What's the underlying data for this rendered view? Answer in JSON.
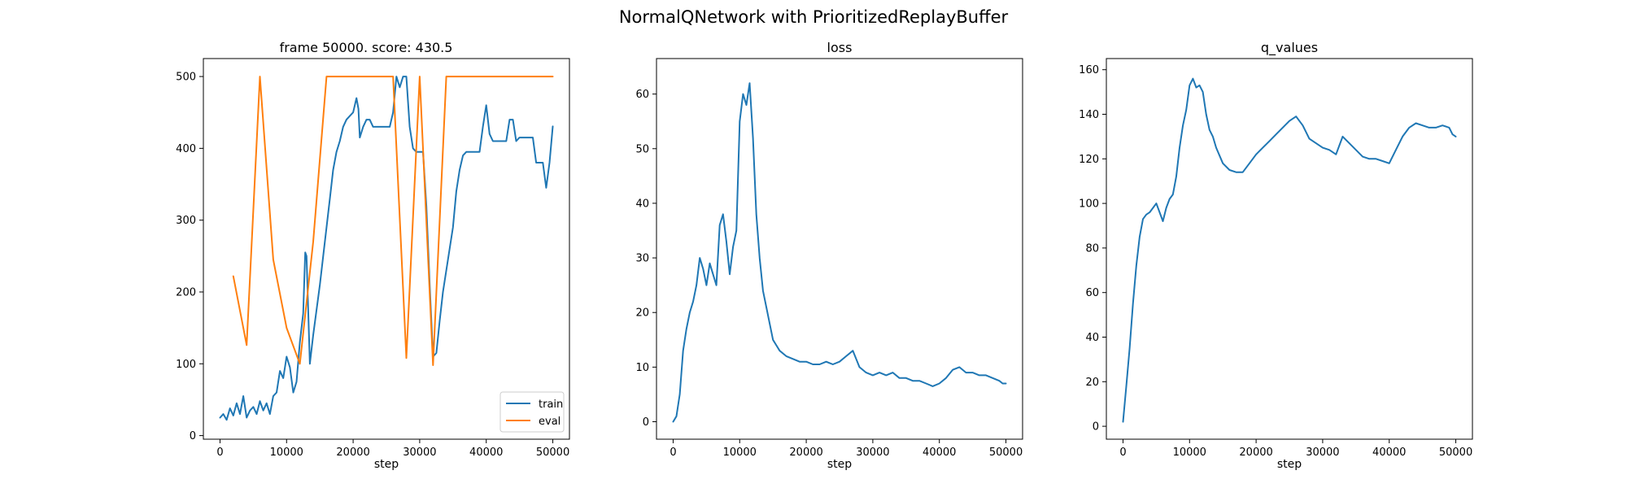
{
  "figure": {
    "suptitle": "NormalQNetwork with PrioritizedReplayBuffer"
  },
  "colors": {
    "train": "#1f77b4",
    "eval": "#ff7f0e",
    "axes": "#000000",
    "legend_border": "#cccccc"
  },
  "chart_data": [
    {
      "type": "line",
      "title": "frame 50000. score: 430.5",
      "xlabel": "step",
      "ylabel": "",
      "xlim": [
        -2500,
        52500
      ],
      "ylim": [
        -5,
        525
      ],
      "xticks": [
        0,
        10000,
        20000,
        30000,
        40000,
        50000
      ],
      "yticks": [
        0,
        100,
        200,
        300,
        400,
        500
      ],
      "legend": {
        "position": "lower right",
        "entries": [
          "train",
          "eval"
        ]
      },
      "series": [
        {
          "name": "train",
          "color": "#1f77b4",
          "x": [
            0,
            500,
            1000,
            1500,
            2000,
            2500,
            3000,
            3500,
            4000,
            4500,
            5000,
            5500,
            6000,
            6500,
            7000,
            7500,
            8000,
            8500,
            9000,
            9500,
            10000,
            10500,
            11000,
            11500,
            12000,
            12500,
            12800,
            13000,
            13500,
            14000,
            14500,
            15000,
            15500,
            16000,
            16500,
            17000,
            17500,
            18000,
            18500,
            19000,
            19500,
            20000,
            20500,
            20800,
            21000,
            21500,
            22000,
            22500,
            23000,
            23500,
            24000,
            24500,
            25000,
            25500,
            26000,
            26500,
            27000,
            27500,
            28000,
            28500,
            29000,
            29500,
            30000,
            30500,
            31000,
            31500,
            32000,
            32500,
            33000,
            33500,
            34000,
            34500,
            35000,
            35500,
            36000,
            36500,
            37000,
            37500,
            38000,
            38500,
            39000,
            39500,
            40000,
            40500,
            41000,
            41500,
            42000,
            42500,
            43000,
            43500,
            44000,
            44500,
            45000,
            45500,
            46000,
            46500,
            47000,
            47500,
            48000,
            48500,
            49000,
            49500,
            50000
          ],
          "values": [
            25,
            30,
            22,
            38,
            28,
            45,
            30,
            55,
            25,
            35,
            40,
            30,
            48,
            35,
            45,
            30,
            55,
            60,
            90,
            80,
            110,
            95,
            60,
            75,
            130,
            170,
            255,
            250,
            100,
            140,
            175,
            210,
            250,
            290,
            330,
            370,
            395,
            410,
            430,
            440,
            445,
            450,
            470,
            455,
            415,
            430,
            440,
            440,
            430,
            430,
            430,
            430,
            430,
            430,
            450,
            500,
            485,
            500,
            500,
            430,
            400,
            395,
            395,
            395,
            320,
            210,
            110,
            115,
            160,
            200,
            230,
            260,
            290,
            340,
            370,
            390,
            395,
            395,
            395,
            395,
            395,
            430,
            460,
            420,
            410,
            410,
            410,
            410,
            410,
            440,
            440,
            410,
            415,
            415,
            415,
            415,
            415,
            380,
            380,
            380,
            345,
            380,
            430.5
          ]
        },
        {
          "name": "eval",
          "color": "#ff7f0e",
          "x": [
            2000,
            4000,
            6000,
            8000,
            10000,
            12000,
            14000,
            16000,
            18000,
            20000,
            22000,
            24000,
            26000,
            28000,
            30000,
            32000,
            34000,
            36000,
            38000,
            40000,
            42000,
            44000,
            46000,
            48000,
            50000
          ],
          "values": [
            222,
            126,
            500,
            245,
            150,
            100,
            270,
            500,
            500,
            500,
            500,
            500,
            500,
            108,
            500,
            98,
            500,
            500,
            500,
            500,
            500,
            500,
            500,
            500,
            500
          ]
        }
      ]
    },
    {
      "type": "line",
      "title": "loss",
      "xlabel": "step",
      "ylabel": "",
      "xlim": [
        -2500,
        52500
      ],
      "ylim": [
        -3.2,
        66.5
      ],
      "xticks": [
        0,
        10000,
        20000,
        30000,
        40000,
        50000
      ],
      "yticks": [
        0,
        10,
        20,
        30,
        40,
        50,
        60
      ],
      "series": [
        {
          "name": "",
          "color": "#1f77b4",
          "x": [
            0,
            500,
            1000,
            1500,
            2000,
            2500,
            3000,
            3500,
            4000,
            4500,
            5000,
            5500,
            6000,
            6500,
            7000,
            7500,
            8000,
            8500,
            9000,
            9500,
            10000,
            10500,
            11000,
            11500,
            12000,
            12500,
            13000,
            13500,
            14000,
            14500,
            15000,
            15500,
            16000,
            17000,
            18000,
            19000,
            20000,
            21000,
            22000,
            23000,
            24000,
            25000,
            26000,
            27000,
            28000,
            29000,
            30000,
            31000,
            32000,
            33000,
            34000,
            35000,
            36000,
            37000,
            38000,
            39000,
            40000,
            41000,
            42000,
            43000,
            44000,
            45000,
            46000,
            47000,
            48000,
            49000,
            49500,
            50000
          ],
          "values": [
            0,
            1,
            5,
            13,
            17,
            20,
            22,
            25,
            30,
            28,
            25,
            29,
            27,
            25,
            36,
            38,
            33,
            27,
            32,
            35,
            55,
            60,
            58,
            62,
            52,
            38,
            30,
            24,
            21,
            18,
            15,
            14,
            13,
            12,
            11.5,
            11,
            11,
            10.5,
            10.5,
            11,
            10.5,
            11,
            12,
            13,
            10,
            9,
            8.5,
            9,
            8.5,
            9,
            8,
            8,
            7.5,
            7.5,
            7,
            6.5,
            7,
            8,
            9.5,
            10,
            9,
            9,
            8.5,
            8.5,
            8,
            7.5,
            7,
            7
          ]
        }
      ]
    },
    {
      "type": "line",
      "title": "q_values",
      "xlabel": "step",
      "ylabel": "",
      "xlim": [
        -2500,
        52500
      ],
      "ylim": [
        -5.8,
        165
      ],
      "xticks": [
        0,
        10000,
        20000,
        30000,
        40000,
        50000
      ],
      "yticks": [
        0,
        20,
        40,
        60,
        80,
        100,
        120,
        140,
        160
      ],
      "series": [
        {
          "name": "",
          "color": "#1f77b4",
          "x": [
            0,
            500,
            1000,
            1500,
            2000,
            2500,
            3000,
            3500,
            4000,
            4500,
            5000,
            5500,
            6000,
            6500,
            7000,
            7500,
            8000,
            8500,
            9000,
            9500,
            10000,
            10500,
            11000,
            11500,
            12000,
            12500,
            13000,
            13500,
            14000,
            15000,
            16000,
            17000,
            18000,
            19000,
            20000,
            21000,
            22000,
            23000,
            24000,
            25000,
            26000,
            27000,
            28000,
            29000,
            30000,
            31000,
            32000,
            33000,
            34000,
            35000,
            36000,
            37000,
            38000,
            39000,
            40000,
            41000,
            42000,
            43000,
            44000,
            45000,
            46000,
            47000,
            48000,
            49000,
            49500,
            50000
          ],
          "values": [
            2,
            18,
            35,
            55,
            72,
            85,
            93,
            95,
            96,
            98,
            100,
            96,
            92,
            98,
            102,
            104,
            112,
            125,
            135,
            142,
            153,
            156,
            152,
            153,
            150,
            140,
            133,
            130,
            125,
            118,
            115,
            114,
            114,
            118,
            122,
            125,
            128,
            131,
            134,
            137,
            139,
            135,
            129,
            127,
            125,
            124,
            122,
            130,
            127,
            124,
            121,
            120,
            120,
            119,
            118,
            124,
            130,
            134,
            136,
            135,
            134,
            134,
            135,
            134,
            131,
            130
          ]
        }
      ]
    }
  ]
}
